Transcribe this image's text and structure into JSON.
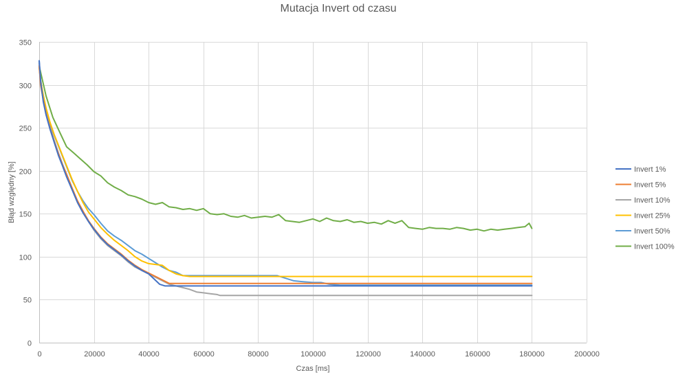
{
  "chart_data": {
    "type": "line",
    "title": "Mutacja Invert od czasu",
    "xlabel": "Czas [ms]",
    "ylabel": "Błąd względny [%]",
    "xlim": [
      0,
      200000
    ],
    "ylim": [
      0,
      350
    ],
    "xticks": [
      0,
      20000,
      40000,
      60000,
      80000,
      100000,
      120000,
      140000,
      160000,
      180000,
      200000
    ],
    "yticks": [
      0,
      50,
      100,
      150,
      200,
      250,
      300,
      350
    ],
    "grid": true,
    "legend_position": "right",
    "series": [
      {
        "name": "Invert 1%",
        "color": "#4472C4",
        "x": [
          0,
          500,
          1500,
          2500,
          4000,
          5500,
          7000,
          8500,
          10000,
          12000,
          14000,
          16000,
          18000,
          20000,
          22500,
          25000,
          27500,
          30000,
          32500,
          35000,
          37500,
          40000,
          42000,
          44000,
          46000,
          48000,
          180000
        ],
        "y": [
          328,
          305,
          280,
          265,
          248,
          233,
          218,
          206,
          193,
          178,
          163,
          151,
          141,
          132,
          122,
          114,
          108,
          102,
          95,
          89,
          84,
          80,
          74,
          68,
          66,
          66,
          66
        ]
      },
      {
        "name": "Invert 5%",
        "color": "#ED7D31",
        "x": [
          0,
          500,
          1500,
          2500,
          4000,
          5500,
          7000,
          8500,
          10000,
          12000,
          14000,
          16000,
          18000,
          20000,
          22500,
          25000,
          27500,
          30000,
          32500,
          35000,
          37500,
          40000,
          42500,
          45000,
          47500,
          180000
        ],
        "y": [
          322,
          300,
          282,
          266,
          249,
          234,
          220,
          207,
          196,
          180,
          165,
          153,
          142,
          133,
          123,
          115,
          109,
          103,
          96,
          90,
          85,
          81,
          77,
          73,
          69,
          69
        ]
      },
      {
        "name": "Invert 10%",
        "color": "#A5A5A5",
        "x": [
          0,
          500,
          1500,
          2500,
          4000,
          5500,
          7000,
          8500,
          10000,
          12000,
          14000,
          16000,
          18000,
          20000,
          22500,
          25000,
          27500,
          30000,
          32500,
          35000,
          37500,
          40000,
          42500,
          45000,
          47500,
          50000,
          52500,
          55000,
          57500,
          60000,
          62500,
          65000,
          66000,
          180000
        ],
        "y": [
          325,
          302,
          283,
          267,
          250,
          235,
          221,
          208,
          196,
          180,
          164,
          152,
          141,
          131,
          121,
          113,
          107,
          101,
          94,
          88,
          84,
          80,
          76,
          72,
          68,
          66,
          64,
          62,
          59,
          58,
          57,
          56,
          55,
          55
        ]
      },
      {
        "name": "Invert 25%",
        "color": "#FFC000",
        "x": [
          0,
          500,
          1500,
          2500,
          4000,
          5500,
          7000,
          8500,
          10000,
          12000,
          14000,
          16000,
          18000,
          20000,
          22500,
          25000,
          27500,
          30000,
          32500,
          35000,
          37500,
          40000,
          42500,
          45000,
          47500,
          50000,
          52500,
          55000,
          180000
        ],
        "y": [
          320,
          305,
          288,
          273,
          256,
          242,
          230,
          218,
          206,
          190,
          176,
          163,
          152,
          144,
          134,
          126,
          119,
          113,
          107,
          100,
          95,
          92,
          91,
          90,
          84,
          80,
          78,
          77,
          77
        ]
      },
      {
        "name": "Invert 50%",
        "color": "#5B9BD5",
        "x": [
          0,
          500,
          1500,
          2500,
          4000,
          5500,
          7000,
          8500,
          10000,
          12000,
          14000,
          16000,
          18000,
          20000,
          22500,
          25000,
          27500,
          30000,
          32500,
          35000,
          37500,
          40000,
          42500,
          45000,
          47500,
          50000,
          52500,
          60000,
          70000,
          80000,
          87000,
          89000,
          91000,
          93000,
          96000,
          100000,
          103000,
          106000,
          110000,
          180000
        ],
        "y": [
          328,
          306,
          285,
          270,
          254,
          241,
          229,
          217,
          205,
          189,
          176,
          165,
          156,
          149,
          139,
          130,
          124,
          119,
          113,
          107,
          103,
          98,
          93,
          88,
          84,
          82,
          78,
          78,
          78,
          78,
          78,
          76,
          74,
          72,
          71,
          70,
          70,
          68,
          67,
          67
        ]
      },
      {
        "name": "Invert 100%",
        "color": "#70AD47",
        "x": [
          0,
          2500,
          5000,
          7500,
          10000,
          12500,
          15000,
          17500,
          20000,
          22500,
          25000,
          27500,
          30000,
          32500,
          35000,
          37500,
          40000,
          42500,
          45000,
          47500,
          50000,
          52500,
          55000,
          57500,
          60000,
          62500,
          65000,
          67500,
          70000,
          72500,
          75000,
          77500,
          80000,
          82500,
          85000,
          87500,
          90000,
          92500,
          95000,
          97500,
          100000,
          102500,
          105000,
          107500,
          110000,
          112500,
          115000,
          117500,
          120000,
          122500,
          125000,
          127500,
          130000,
          132500,
          135000,
          137500,
          140000,
          142500,
          145000,
          147500,
          150000,
          152500,
          155000,
          157500,
          160000,
          162500,
          165000,
          167500,
          170000,
          172500,
          175000,
          177500,
          179000,
          180000
        ],
        "y": [
          322,
          287,
          262,
          245,
          228,
          221,
          214,
          207,
          199,
          194,
          186,
          181,
          177,
          172,
          170,
          167,
          163,
          161,
          163,
          158,
          157,
          155,
          156,
          154,
          156,
          150,
          149,
          150,
          147,
          146,
          148,
          145,
          146,
          147,
          146,
          149,
          142,
          141,
          140,
          142,
          144,
          141,
          145,
          142,
          141,
          143,
          140,
          141,
          139,
          140,
          138,
          142,
          139,
          142,
          134,
          133,
          132,
          134,
          133,
          133,
          132,
          134,
          133,
          131,
          132,
          130,
          132,
          131,
          132,
          133,
          134,
          135,
          139,
          133
        ]
      }
    ]
  }
}
